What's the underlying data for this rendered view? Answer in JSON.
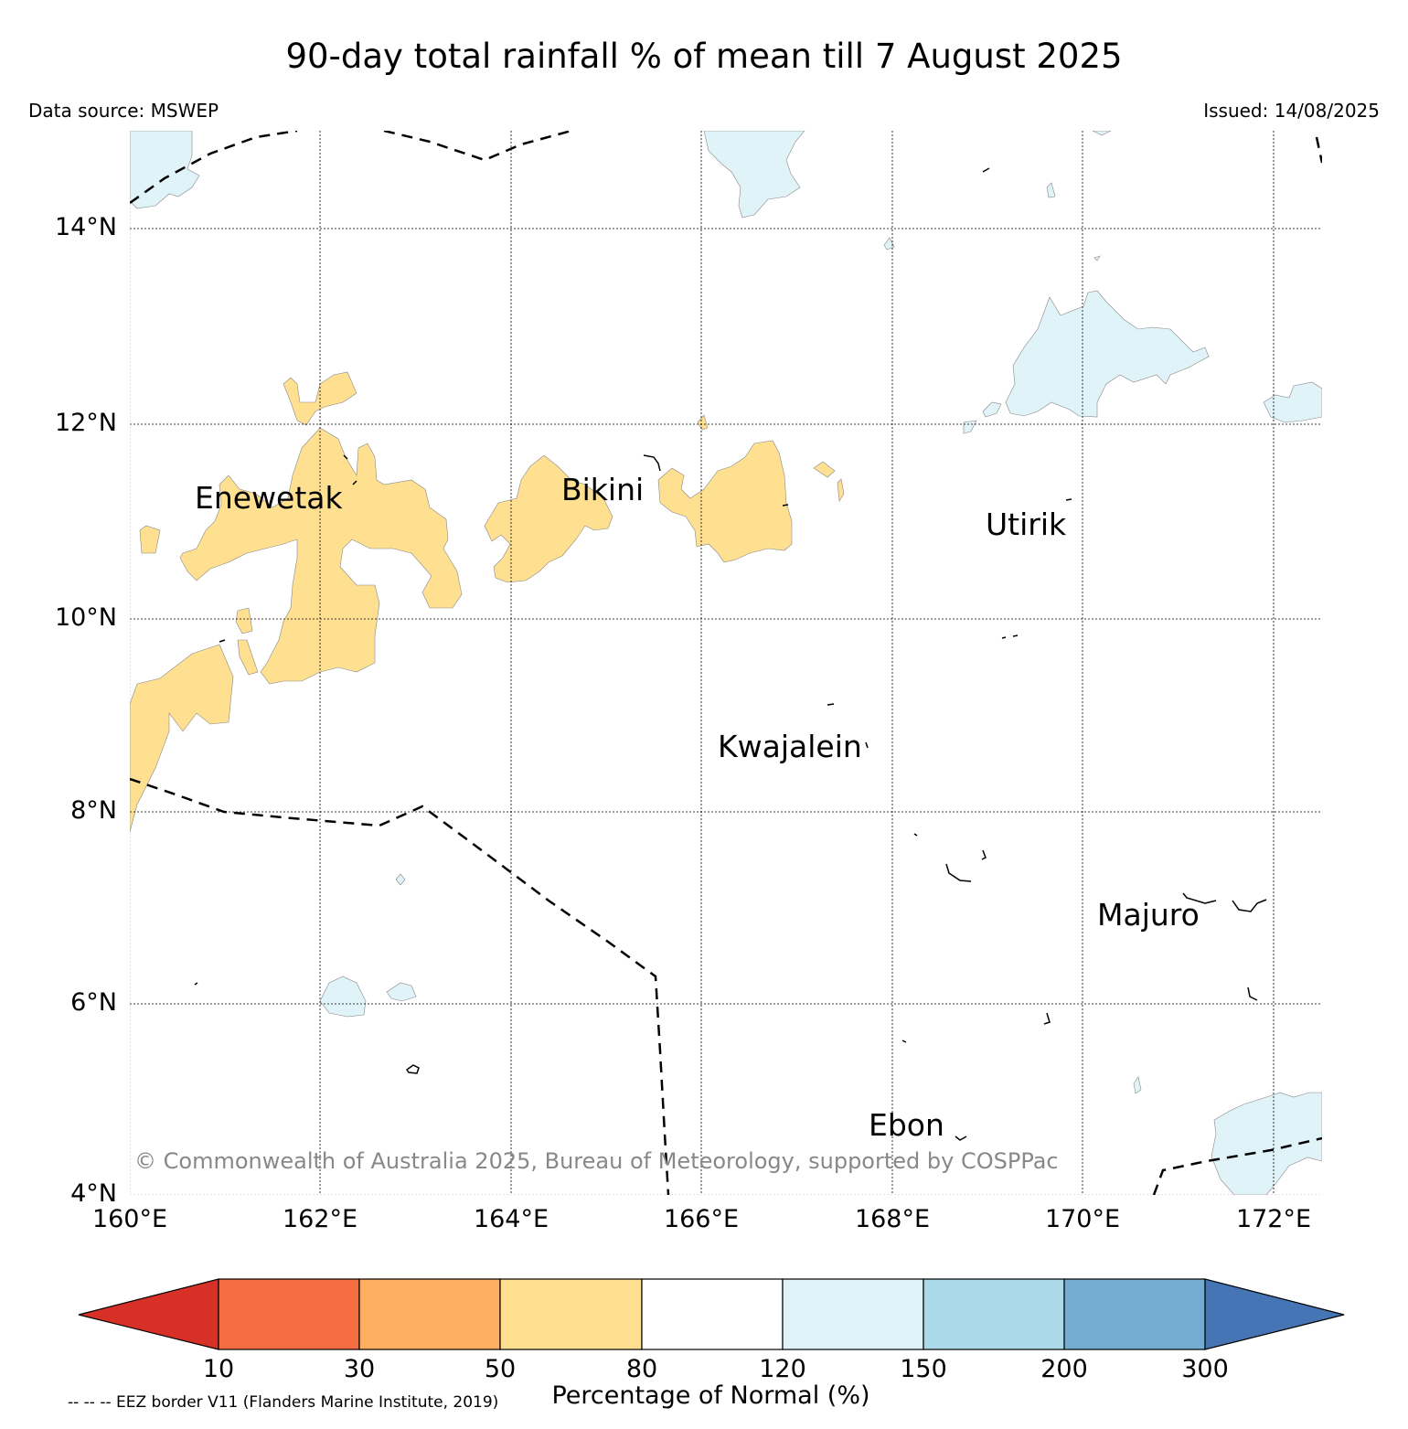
{
  "header": {
    "title": "90-day total rainfall % of mean till 7 August 2025",
    "data_source": "Data source: MSWEP",
    "issued": "Issued: 14/08/2025"
  },
  "map": {
    "lat_labels": [
      "14°N",
      "12°N",
      "10°N",
      "8°N",
      "6°N",
      "4°N"
    ],
    "lon_labels": [
      "160°E",
      "162°E",
      "164°E",
      "166°E",
      "168°E",
      "170°E",
      "172°E"
    ],
    "places": [
      {
        "name": "Enewetak"
      },
      {
        "name": "Bikini"
      },
      {
        "name": "Utirik"
      },
      {
        "name": "Kwajalein"
      },
      {
        "name": "Majuro"
      },
      {
        "name": "Ebon"
      }
    ],
    "copyright": "© Commonwealth of Australia 2025, Bureau of Meteorology, supported by COSPPac",
    "colors": {
      "dry_50_80": "#fee090",
      "wet_120_150": "#e0f3f8"
    }
  },
  "colorbar": {
    "title": "Percentage of Normal (%)",
    "ticks": [
      "10",
      "30",
      "50",
      "80",
      "120",
      "150",
      "200",
      "300"
    ],
    "colors": [
      "#d73027",
      "#f46d43",
      "#fdae61",
      "#fee090",
      "#ffffff",
      "#e0f3f8",
      "#abd9e9",
      "#74add1",
      "#4575b4"
    ]
  },
  "footer": {
    "eez_note": "-- -- -- EEZ border V11 (Flanders Marine Institute, 2019)"
  }
}
